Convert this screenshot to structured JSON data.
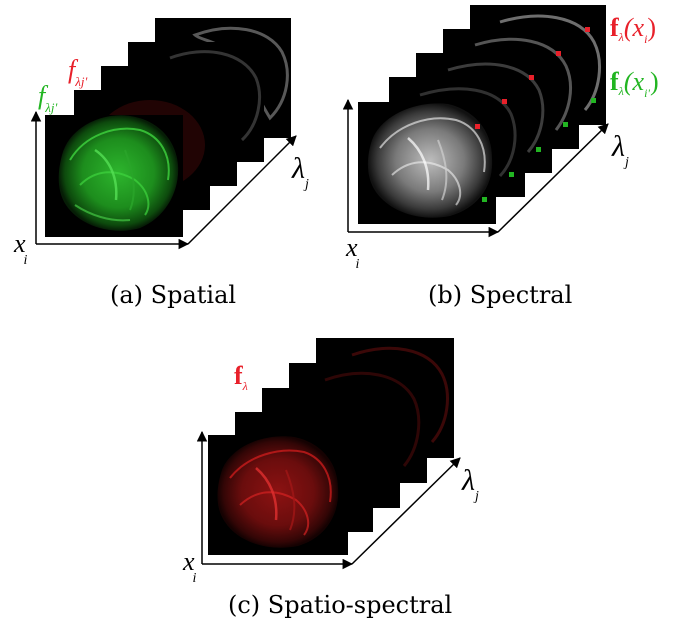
{
  "panels": {
    "a": {
      "caption": "(a) Spatial",
      "axis_x": "x",
      "axis_x_sub": "i",
      "axis_lambda": "λ",
      "axis_lambda_sub": "j",
      "label_red": "f",
      "label_red_sub": "λj'",
      "label_green": "f",
      "label_green_sub": "λj'"
    },
    "b": {
      "caption": "(b) Spectral",
      "axis_x": "x",
      "axis_x_sub": "i",
      "axis_lambda": "λ",
      "axis_lambda_sub": "j",
      "label_red_f": "f",
      "label_red_sub": "λ",
      "label_red_arg": "(x",
      "label_red_arg_sub": "i",
      "label_red_close": ")",
      "label_green_f": "f",
      "label_green_sub": "λ",
      "label_green_arg": "(x",
      "label_green_arg_sub": "i'",
      "label_green_close": ")"
    },
    "c": {
      "caption": "(c) Spatio-spectral",
      "axis_x": "x",
      "axis_x_sub": "i",
      "axis_lambda": "λ",
      "axis_lambda_sub": "j",
      "label_red": "f",
      "label_red_sub": "λ"
    }
  },
  "colors": {
    "red": "#e8202a",
    "green": "#22b522",
    "frame": "#000000"
  }
}
